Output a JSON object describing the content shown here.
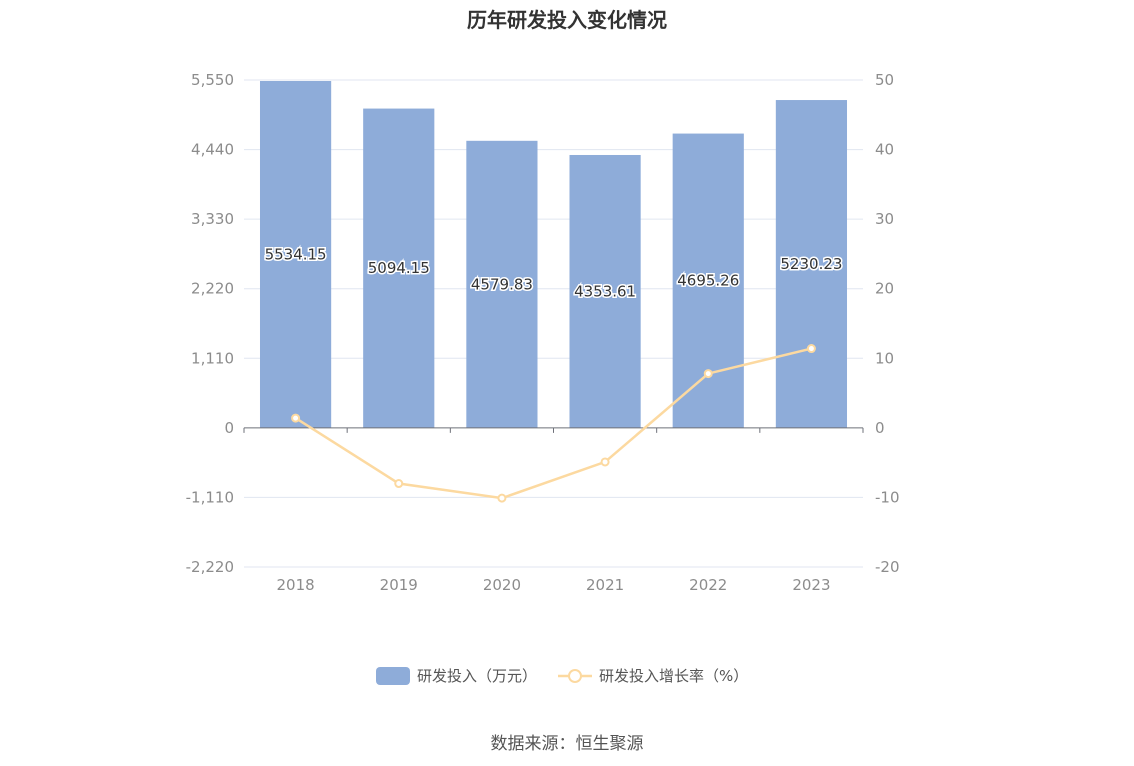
{
  "chart_data": {
    "type": "bar",
    "title": "历年研发投入变化情况",
    "categories": [
      "2018",
      "2019",
      "2020",
      "2021",
      "2022",
      "2023"
    ],
    "series": [
      {
        "name": "研发投入（万元）",
        "type": "bar",
        "axis": "left",
        "values": [
          5534.15,
          5094.15,
          4579.83,
          4353.61,
          4695.26,
          5230.23
        ],
        "data_labels": [
          "5534.15",
          "5094.15",
          "4579.83",
          "4353.61",
          "4695.26",
          "5230.23"
        ],
        "color": "#8eacd9"
      },
      {
        "name": "研发投入增长率（%）",
        "type": "line",
        "axis": "right",
        "values": [
          1.4,
          -8.0,
          -10.1,
          -4.9,
          7.8,
          11.4
        ],
        "color": "#fcd9a0"
      }
    ],
    "y_left": {
      "ylim": [
        -2220,
        5550
      ],
      "ticks": [
        5550,
        4440,
        3330,
        2220,
        1110,
        0,
        -1110,
        -2220
      ],
      "tick_labels": [
        "5,550",
        "4,440",
        "3,330",
        "2,220",
        "1,110",
        "0",
        "-1,110",
        "-2,220"
      ]
    },
    "y_right": {
      "ylim": [
        -20,
        50
      ],
      "ticks": [
        50,
        40,
        30,
        20,
        10,
        0,
        -10,
        -20
      ],
      "tick_labels": [
        "50",
        "40",
        "30",
        "20",
        "10",
        "0",
        "-10",
        "-20"
      ]
    },
    "grid": true,
    "legend_position": "bottom-center"
  },
  "source": "数据来源：恒生聚源"
}
